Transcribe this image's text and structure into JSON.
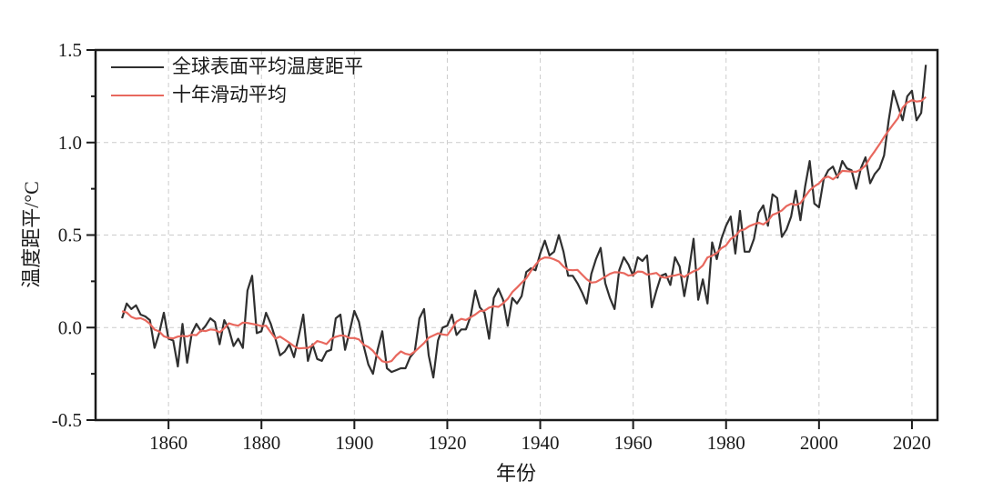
{
  "chart_data": {
    "type": "line",
    "title": "",
    "xlabel": "年份",
    "ylabel": "温度距平/°C",
    "x_start_year": 1850,
    "x_end_year": 2023,
    "x_step_years": 1,
    "axes": {
      "x": {
        "range": [
          1844.3,
          2025.5
        ],
        "tick_values": [
          1860,
          1880,
          1900,
          1920,
          1940,
          1960,
          1980,
          2000,
          2020
        ]
      },
      "y": {
        "range": [
          -0.5,
          1.5
        ],
        "tick_values": [
          -0.5,
          0.0,
          0.5,
          1.0,
          1.5
        ],
        "tick_labels": [
          "-0.5",
          "0.0",
          "0.5",
          "1.0",
          "1.5"
        ],
        "minor_tick_values": [
          -0.25,
          0.25,
          0.75,
          1.25
        ]
      }
    },
    "grid": {
      "show": true,
      "style": "dashed",
      "color": "#cccccc"
    },
    "legend_position": "top-left-inside",
    "series": [
      {
        "name": "全球表面平均温度距平",
        "color": "#2f2f2f",
        "values": [
          0.05,
          0.13,
          0.1,
          0.12,
          0.07,
          0.06,
          0.04,
          -0.11,
          -0.03,
          0.08,
          -0.06,
          -0.07,
          -0.21,
          0.02,
          -0.19,
          -0.03,
          0.02,
          -0.02,
          0.01,
          0.05,
          0.03,
          -0.09,
          0.04,
          -0.01,
          -0.1,
          -0.06,
          -0.11,
          0.2,
          0.28,
          -0.03,
          -0.02,
          0.08,
          0.02,
          -0.06,
          -0.15,
          -0.13,
          -0.09,
          -0.16,
          -0.05,
          0.07,
          -0.18,
          -0.09,
          -0.17,
          -0.18,
          -0.13,
          -0.12,
          0.05,
          0.07,
          -0.12,
          -0.02,
          0.09,
          0.03,
          -0.1,
          -0.2,
          -0.25,
          -0.12,
          -0.02,
          -0.22,
          -0.24,
          -0.23,
          -0.22,
          -0.22,
          -0.16,
          -0.13,
          0.05,
          0.1,
          -0.15,
          -0.27,
          -0.07,
          0.0,
          0.01,
          0.07,
          -0.04,
          -0.01,
          -0.01,
          0.06,
          0.2,
          0.11,
          0.08,
          -0.06,
          0.16,
          0.21,
          0.15,
          0.01,
          0.16,
          0.13,
          0.17,
          0.3,
          0.32,
          0.31,
          0.4,
          0.47,
          0.39,
          0.41,
          0.5,
          0.41,
          0.28,
          0.28,
          0.24,
          0.19,
          0.13,
          0.29,
          0.37,
          0.43,
          0.24,
          0.16,
          0.1,
          0.31,
          0.38,
          0.34,
          0.28,
          0.38,
          0.36,
          0.39,
          0.11,
          0.2,
          0.28,
          0.29,
          0.23,
          0.38,
          0.33,
          0.17,
          0.31,
          0.48,
          0.15,
          0.26,
          0.13,
          0.46,
          0.37,
          0.48,
          0.55,
          0.6,
          0.4,
          0.63,
          0.41,
          0.41,
          0.48,
          0.62,
          0.66,
          0.55,
          0.72,
          0.7,
          0.49,
          0.53,
          0.6,
          0.74,
          0.58,
          0.76,
          0.9,
          0.67,
          0.65,
          0.8,
          0.85,
          0.87,
          0.81,
          0.9,
          0.86,
          0.85,
          0.75,
          0.86,
          0.92,
          0.78,
          0.83,
          0.86,
          0.93,
          1.12,
          1.28,
          1.2,
          1.12,
          1.25,
          1.28,
          1.12,
          1.16,
          1.42
        ]
      },
      {
        "name": "十年滑动平均",
        "color": "#e8685e",
        "derived_from": "series 0",
        "window_years": 10
      }
    ]
  },
  "colors": {
    "background": "#ffffff",
    "axis": "#1a1a1a",
    "text": "#1a1a1a",
    "annual_line": "#2f2f2f",
    "moving_average_line": "#e8685e",
    "grid": "#cccccc"
  }
}
